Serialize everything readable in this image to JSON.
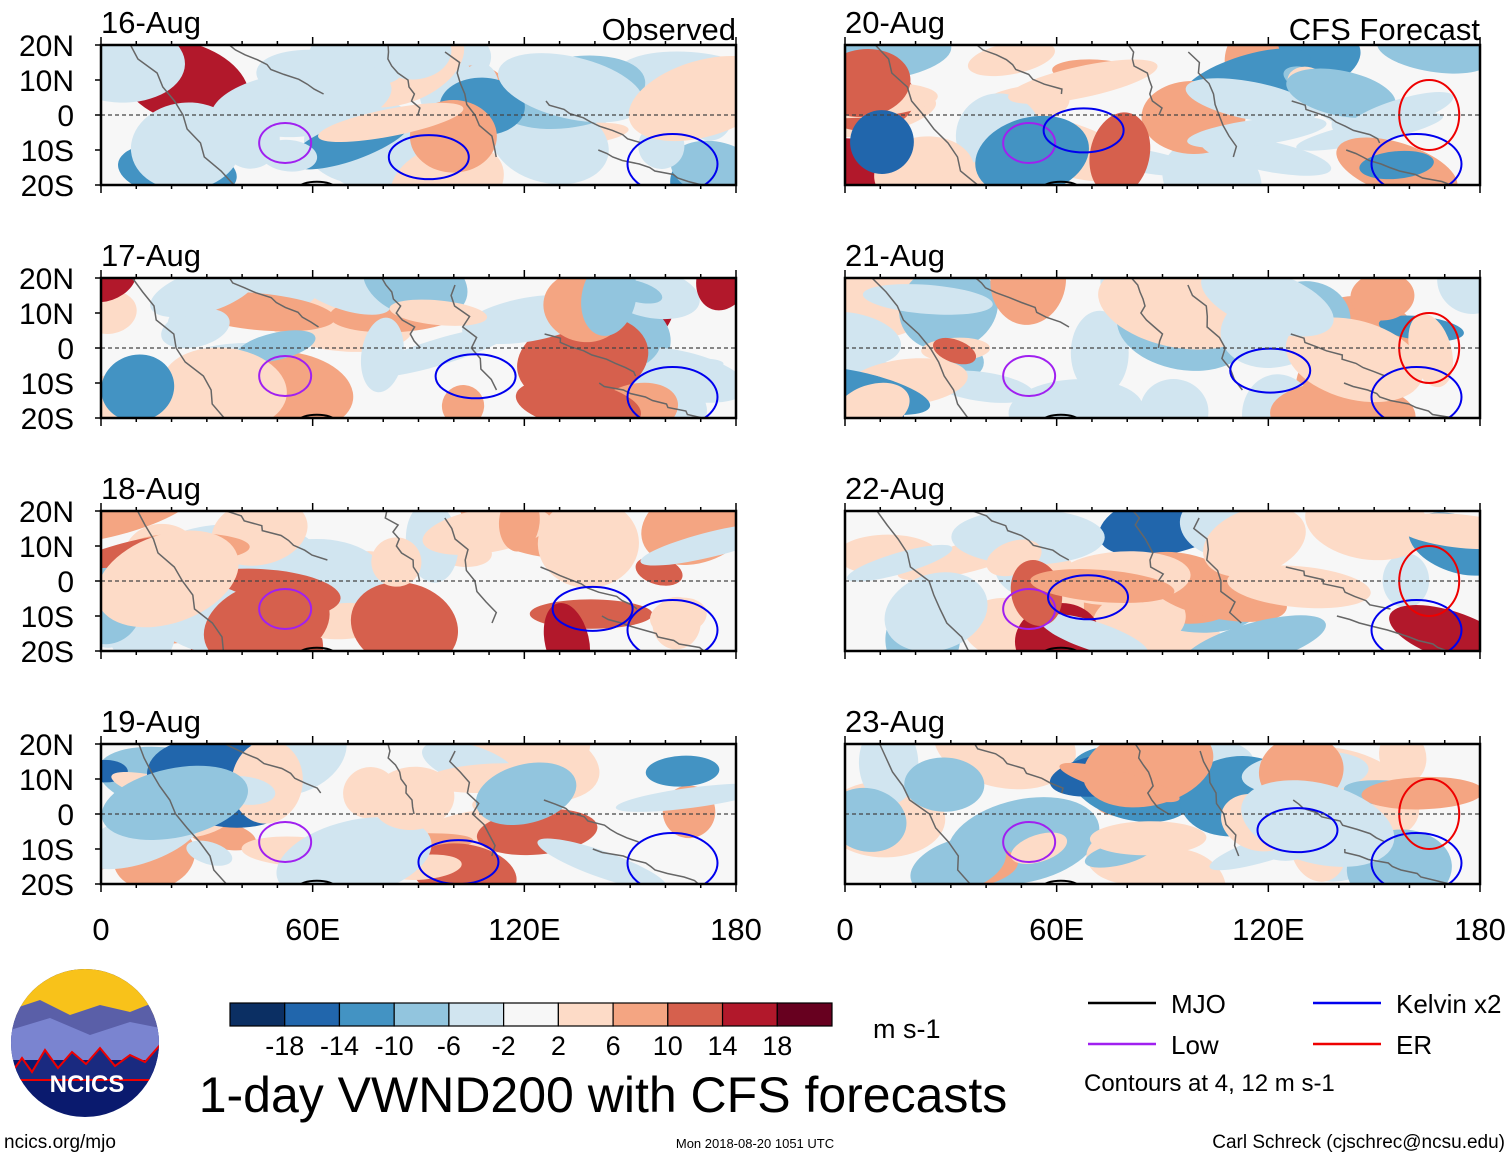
{
  "chart_data": {
    "type": "heatmap",
    "title": "1-day VWND200 with CFS forecasts",
    "units": "m s-1",
    "panels": [
      {
        "date": "16-Aug",
        "label": "Observed",
        "column": "observed"
      },
      {
        "date": "17-Aug",
        "label": "",
        "column": "observed"
      },
      {
        "date": "18-Aug",
        "label": "",
        "column": "observed"
      },
      {
        "date": "19-Aug",
        "label": "",
        "column": "observed"
      },
      {
        "date": "20-Aug",
        "label": "CFS Forecast",
        "column": "forecast"
      },
      {
        "date": "21-Aug",
        "label": "",
        "column": "forecast"
      },
      {
        "date": "22-Aug",
        "label": "",
        "column": "forecast"
      },
      {
        "date": "23-Aug",
        "label": "",
        "column": "forecast"
      }
    ],
    "y_ticks": [
      "20N",
      "10N",
      "0",
      "10S",
      "20S"
    ],
    "x_ticks": [
      "0",
      "60E",
      "120E",
      "180"
    ],
    "xlim": [
      0,
      180
    ],
    "ylim": [
      -20,
      20
    ],
    "colorbar": {
      "levels": [
        "-18",
        "-14",
        "-10",
        "-6",
        "-2",
        "2",
        "6",
        "10",
        "14",
        "18"
      ],
      "colors": [
        "#0b2f63",
        "#2166ac",
        "#4393c3",
        "#92c5de",
        "#d1e5f0",
        "#f7f7f7",
        "#fddbc7",
        "#f4a582",
        "#d6604d",
        "#b2182b",
        "#67001f"
      ],
      "units": "m s-1"
    },
    "legend": [
      {
        "label": "MJO",
        "color": "#000000"
      },
      {
        "label": "Kelvin x2",
        "color": "#0000ee"
      },
      {
        "label": "Low",
        "color": "#a020f0"
      },
      {
        "label": "ER",
        "color": "#ee0000"
      }
    ],
    "contour_note": "Contours at 4, 12 m s-1"
  },
  "footer": {
    "website": "ncics.org/mjo",
    "timestamp": "Mon 2018-08-20 1051 UTC",
    "author": "Carl Schreck (cjschrec@ncsu.edu)",
    "logo_text": "NCICS"
  }
}
